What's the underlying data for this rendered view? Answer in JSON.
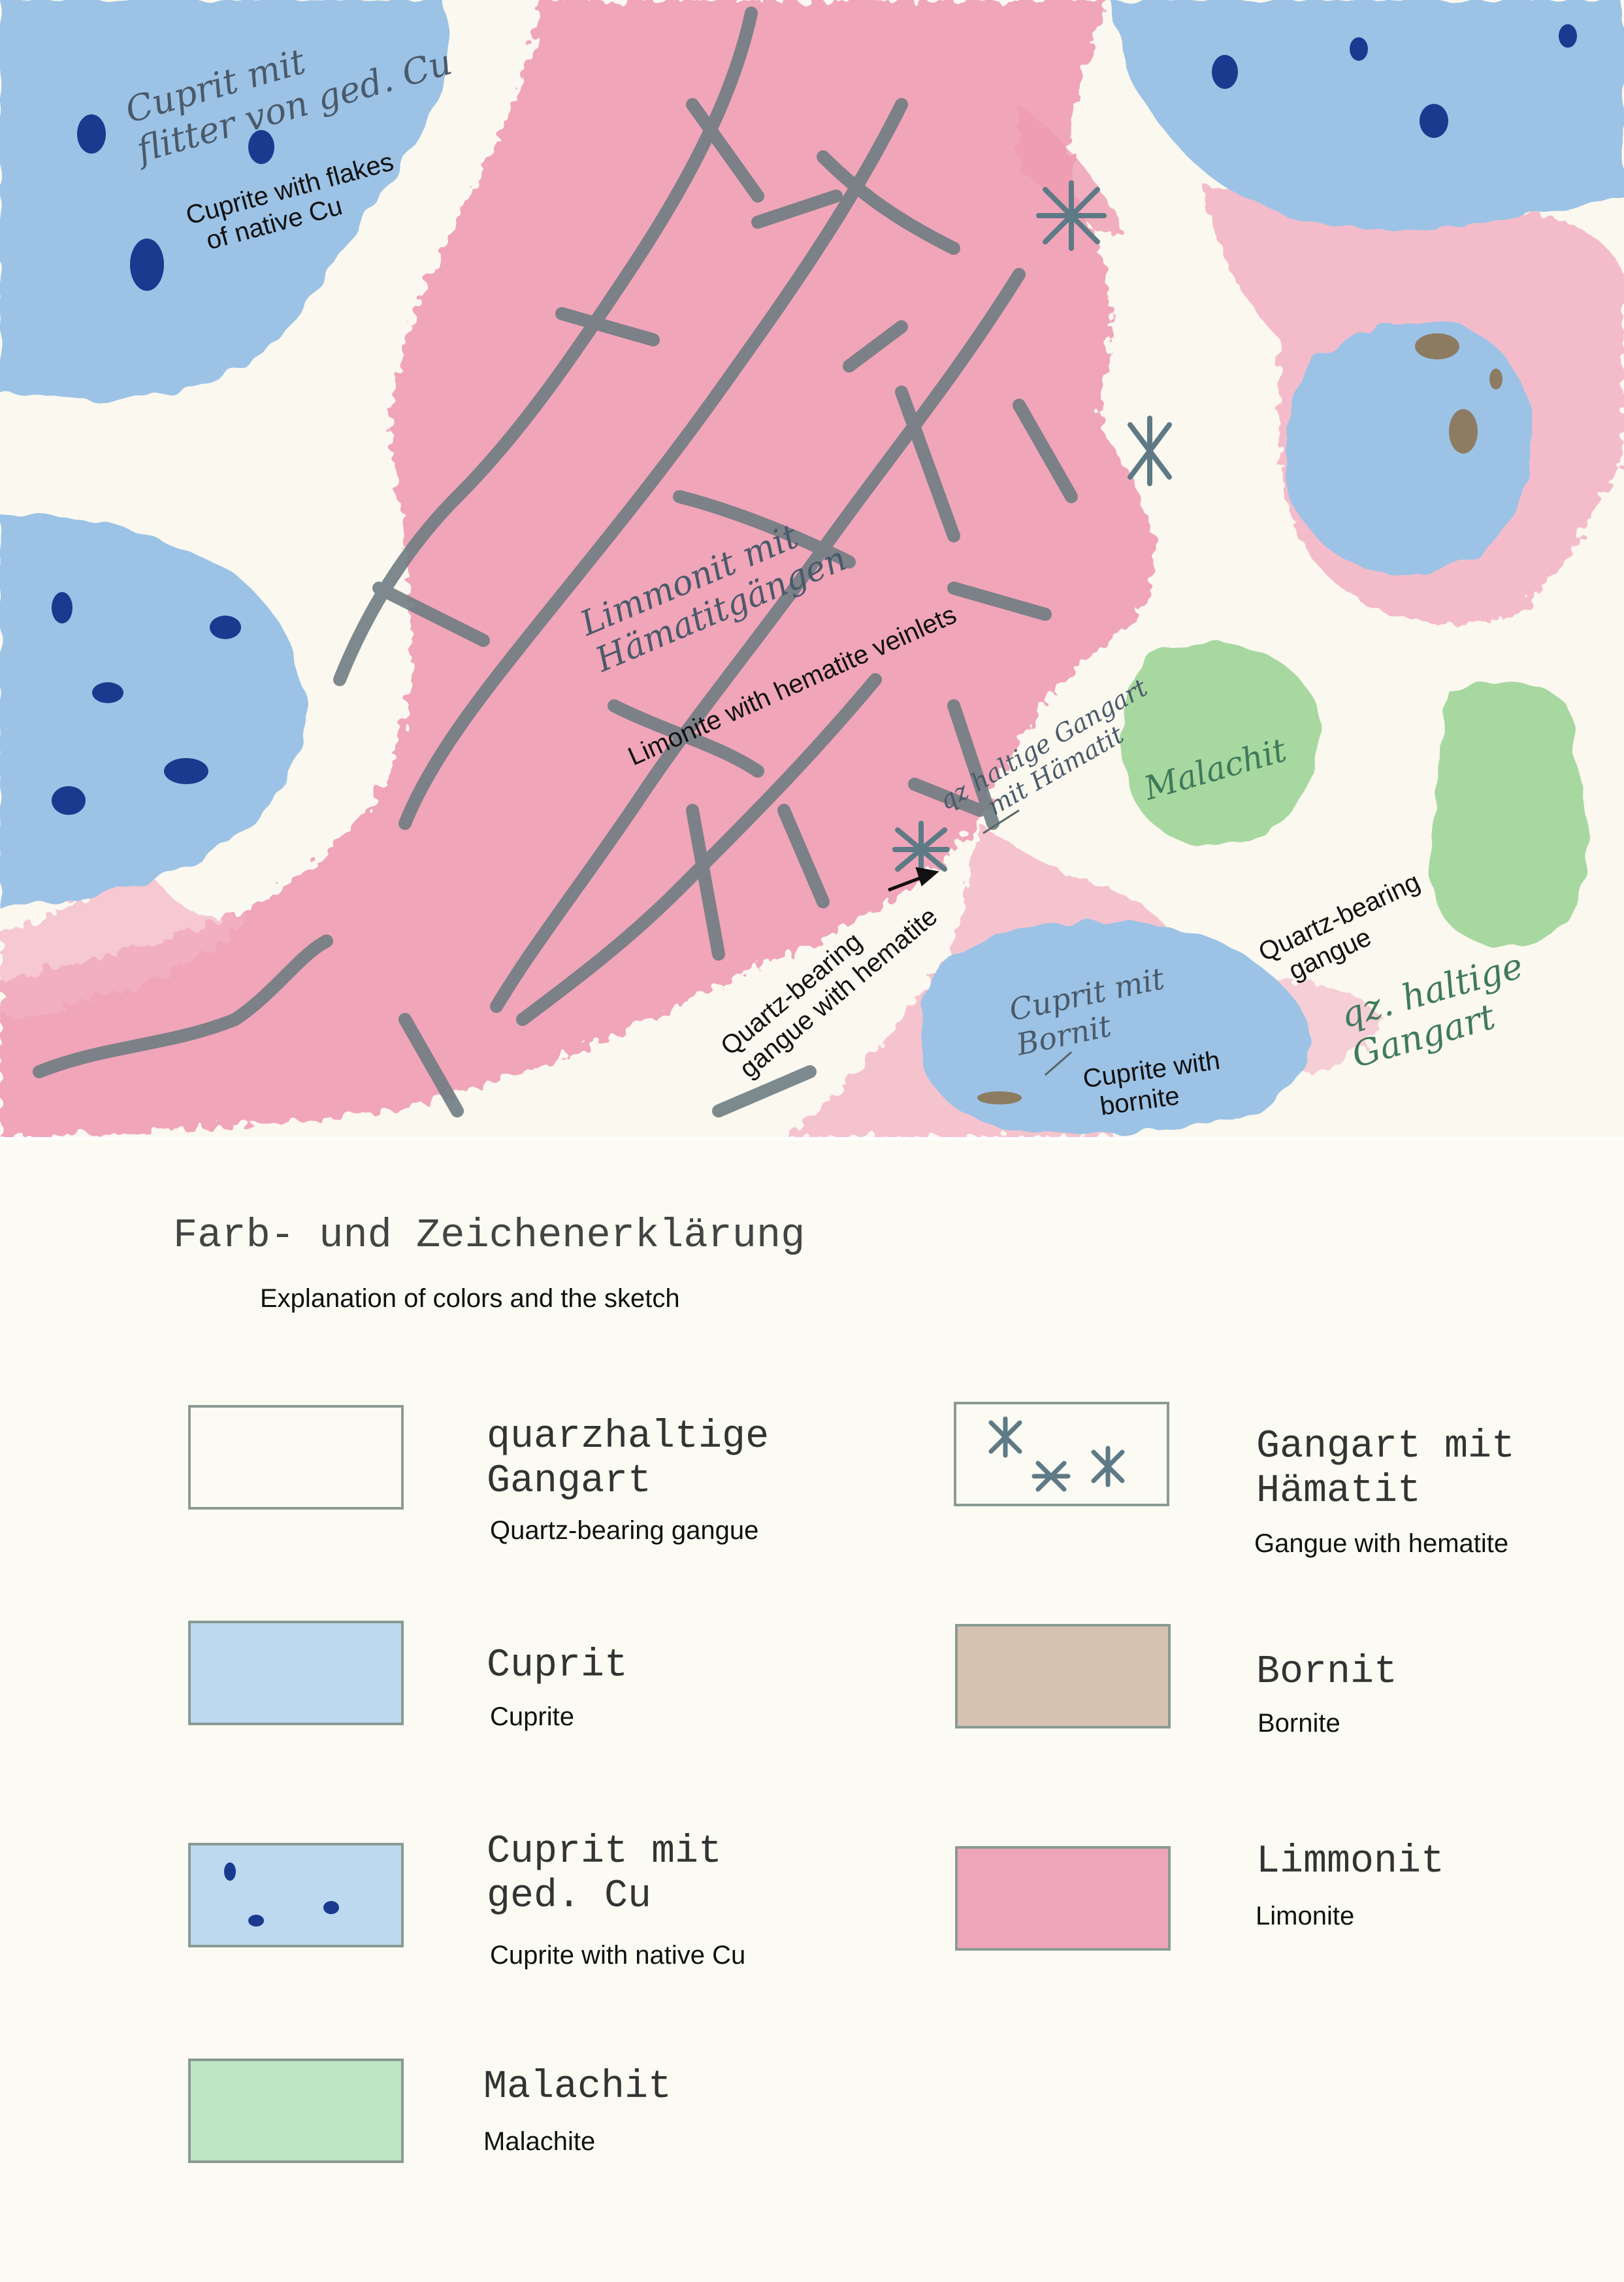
{
  "colors": {
    "paper": "#fbf8ef",
    "cuprite": "#9cc3e6",
    "cuprite_dark": "#6fa0d8",
    "native_cu": "#1a3a8f",
    "limonite": "#ee9bb2",
    "hematite": "#6f7d82",
    "malachite": "#a7d8a0",
    "bornite": "#d6c2b0"
  },
  "sketch": {
    "cuprite_native_de": [
      "Cuprit mit",
      "flitter von ged. Cu"
    ],
    "cuprite_native_en": [
      "Cuprite with flakes",
      "of native Cu"
    ],
    "limonite_de": [
      "Limmonit mit",
      "Hämatitgängen"
    ],
    "limonite_en": "Limonite with hematite veinlets",
    "gangue_hem_de": [
      "qz haltige Gangart",
      "mit Hämatit"
    ],
    "gangue_hem_en": [
      "Quartz-bearing",
      "gangue with hematite"
    ],
    "malachite_de": "Malachit",
    "cuprite_bornite_de": [
      "Cuprit mit",
      "Bornit"
    ],
    "cuprite_bornite_en": [
      "Cuprite with",
      "bornite"
    ],
    "gangue_de": [
      "qz. haltige",
      "Gangart"
    ],
    "gangue_en": [
      "Quartz-bearing",
      "gangue"
    ]
  },
  "legend": {
    "title": "Farb- und Zeichenerklärung",
    "subtitle": "Explanation of colors and the sketch",
    "items": [
      {
        "name_de": "quarzhaltige\nGangart",
        "name_en": "Quartz-bearing gangue",
        "swatch": "gangue"
      },
      {
        "name_de": "Gangart mit\nHämatit",
        "name_en": "Gangue with hematite",
        "swatch": "gangue-hematite"
      },
      {
        "name_de": "Cuprit",
        "name_en": "Cuprite",
        "swatch": "cuprite"
      },
      {
        "name_de": "Bornit",
        "name_en": "Bornite",
        "swatch": "bornite"
      },
      {
        "name_de": "Cuprit mit\nged. Cu",
        "name_en": "Cuprite with native Cu",
        "swatch": "cuprite-native-cu"
      },
      {
        "name_de": "Limmonit",
        "name_en": "Limonite",
        "swatch": "limonite"
      },
      {
        "name_de": "Malachit",
        "name_en": "Malachite",
        "swatch": "malachite"
      }
    ]
  }
}
